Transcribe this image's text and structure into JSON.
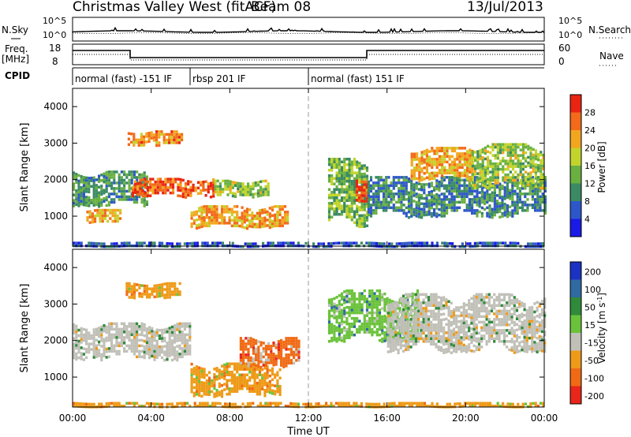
{
  "header": {
    "station": "Christmas Valley West (fitACF)",
    "beam": "Beam 08",
    "date": "13/Jul/2013"
  },
  "noise_panel": {
    "left_label": "N.Sky",
    "right_label": "N.Search",
    "left_ticks": [
      "10^5",
      "10^0"
    ],
    "right_ticks": [
      "10^5",
      "10^0"
    ]
  },
  "freq_panel": {
    "left_label_1": "Freq.",
    "left_label_2": "[MHz]",
    "right_label": "Nave",
    "left_ticks": [
      "18",
      "8"
    ],
    "right_ticks": [
      "60",
      "0"
    ]
  },
  "cpid_panel": {
    "label": "CPID",
    "segments": [
      {
        "text": "normal (fast) -151 IF",
        "start_hour": 0
      },
      {
        "text": "rbsp 201 IF",
        "start_hour": 6
      },
      {
        "text": "normal (fast) 151 IF",
        "start_hour": 12
      }
    ]
  },
  "chart_data": [
    {
      "type": "heatmap",
      "quantity": "power",
      "ylabel": "Slant Range [km]",
      "xlabel": "",
      "xlim_hours": [
        0,
        24
      ],
      "ylim_km": [
        180,
        4500
      ],
      "yticks": [
        1000,
        2000,
        3000,
        4000
      ],
      "colorbar_label": "Power [dB]",
      "colorbar_ticks": [
        4,
        8,
        12,
        16,
        20,
        24,
        28
      ],
      "colorbar_range": [
        0,
        32
      ],
      "colors": [
        "#1a1ae6",
        "#2d57c8",
        "#3b8a64",
        "#6ab041",
        "#c2d42c",
        "#f2a61f",
        "#f26a1a",
        "#ea2412"
      ],
      "echo_regions": [
        {
          "t": [
            0.0,
            3.8
          ],
          "r": [
            1300,
            2250
          ],
          "v": 11
        },
        {
          "t": [
            0.7,
            2.4
          ],
          "r": [
            820,
            1200
          ],
          "v": 22
        },
        {
          "t": [
            2.8,
            5.6
          ],
          "r": [
            2950,
            3350
          ],
          "v": 24
        },
        {
          "t": [
            3.0,
            7.2
          ],
          "r": [
            1550,
            2050
          ],
          "v": 27
        },
        {
          "t": [
            6.0,
            11.0
          ],
          "r": [
            700,
            1300
          ],
          "v": 23
        },
        {
          "t": [
            7.2,
            10.0
          ],
          "r": [
            1550,
            2000
          ],
          "v": 16
        },
        {
          "t": [
            13.0,
            15.0
          ],
          "r": [
            700,
            2600
          ],
          "v": 14
        },
        {
          "t": [
            14.4,
            15.0
          ],
          "r": [
            1400,
            2100
          ],
          "v": 28
        },
        {
          "t": [
            15.0,
            24.0
          ],
          "r": [
            1000,
            2100
          ],
          "v": 10
        },
        {
          "t": [
            17.2,
            20.3
          ],
          "r": [
            2000,
            2900
          ],
          "v": 22
        },
        {
          "t": [
            20.3,
            24.0
          ],
          "r": [
            1800,
            3000
          ],
          "v": 16
        },
        {
          "t": [
            0.0,
            24.0
          ],
          "r": [
            180,
            300
          ],
          "v": 6
        }
      ]
    },
    {
      "type": "heatmap",
      "quantity": "velocity",
      "ylabel": "Slant Range [km]",
      "xlabel": "Time UT",
      "xlim_hours": [
        0,
        24
      ],
      "xticks": [
        "00:00",
        "04:00",
        "08:00",
        "12:00",
        "16:00",
        "20:00",
        "00:00"
      ],
      "ylim_km": [
        180,
        4500
      ],
      "yticks": [
        1000,
        2000,
        3000,
        4000
      ],
      "colorbar_label": "Velocity [m s-1]",
      "colorbar_ticks": [
        "200",
        "100",
        "50",
        "15",
        "-15",
        "-50",
        "-100",
        "-200"
      ],
      "colors": [
        "#1c32c2",
        "#2f6aa0",
        "#2f8a3a",
        "#6ac23a",
        "#c0c0b8",
        "#ee9a18",
        "#f06a14",
        "#e8261a"
      ],
      "echo_regions": [
        {
          "t": [
            0.0,
            6.0
          ],
          "r": [
            1500,
            2500
          ],
          "c": 4
        },
        {
          "t": [
            2.7,
            5.4
          ],
          "r": [
            3200,
            3600
          ],
          "c": 5
        },
        {
          "t": [
            6.0,
            10.5
          ],
          "r": [
            500,
            1400
          ],
          "c": 5
        },
        {
          "t": [
            8.5,
            11.5
          ],
          "r": [
            1300,
            2100
          ],
          "c": 6
        },
        {
          "t": [
            13.0,
            17.5
          ],
          "r": [
            2000,
            3400
          ],
          "c": 3
        },
        {
          "t": [
            16.0,
            24.0
          ],
          "r": [
            1700,
            3300
          ],
          "c": 4
        },
        {
          "t": [
            0.0,
            24.0
          ],
          "r": [
            180,
            320
          ],
          "c": 5
        }
      ]
    }
  ]
}
